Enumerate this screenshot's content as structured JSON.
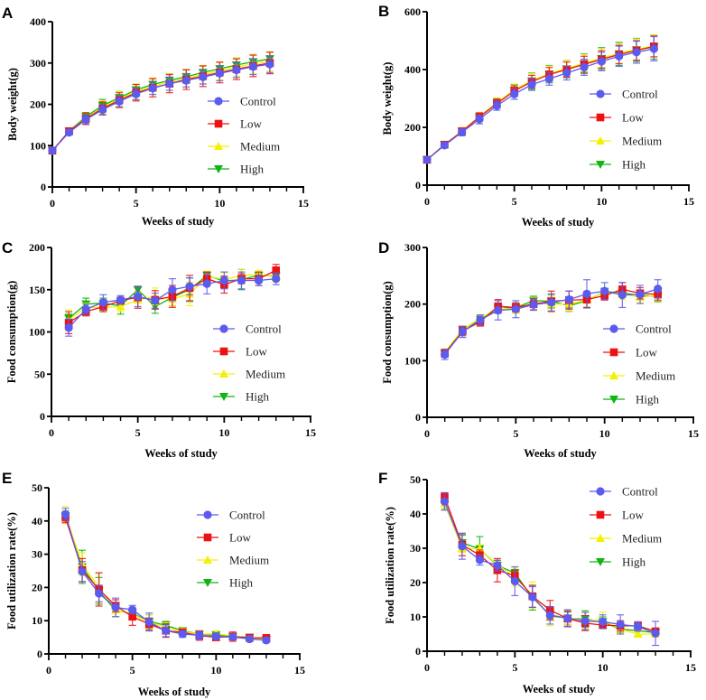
{
  "figure": {
    "legend_labels": [
      "Control",
      "Low",
      "Medium",
      "High"
    ]
  },
  "series_style": {
    "Control": {
      "color": "#5b5bf0",
      "marker": "circle"
    },
    "Low": {
      "color": "#ee1111",
      "marker": "square"
    },
    "Medium": {
      "color": "#f5f000",
      "marker": "triangle-up"
    },
    "High": {
      "color": "#11b511",
      "marker": "triangle-down"
    }
  },
  "chart_data": [
    {
      "panel": "A",
      "type": "line",
      "title": "",
      "xlabel": "Weeks of study",
      "ylabel": "Body weight(g)",
      "xlim": [
        0,
        15
      ],
      "ylim": [
        0,
        400
      ],
      "xticks": [
        0,
        5,
        10,
        15
      ],
      "yticks": [
        0,
        100,
        200,
        300,
        400
      ],
      "grid": false,
      "legend": "right-middle",
      "x": [
        0,
        1,
        2,
        3,
        4,
        5,
        6,
        7,
        8,
        9,
        10,
        11,
        12,
        13
      ],
      "series": [
        {
          "name": "Control",
          "values": [
            88,
            132,
            163,
            187,
            207,
            225,
            239,
            250,
            258,
            266,
            275,
            283,
            291,
            297
          ],
          "error": [
            4,
            6,
            10,
            12,
            13,
            14,
            15,
            16,
            16,
            17,
            18,
            18,
            19,
            20
          ]
        },
        {
          "name": "Low",
          "values": [
            88,
            135,
            165,
            190,
            210,
            228,
            240,
            250,
            260,
            268,
            277,
            285,
            293,
            300
          ],
          "error": [
            4,
            7,
            14,
            16,
            18,
            20,
            22,
            22,
            24,
            25,
            25,
            25,
            26,
            26
          ]
        },
        {
          "name": "Medium",
          "values": [
            88,
            134,
            167,
            193,
            213,
            231,
            244,
            254,
            263,
            272,
            281,
            290,
            298,
            304
          ],
          "error": [
            4,
            6,
            12,
            16,
            18,
            18,
            20,
            20,
            21,
            22,
            22,
            22,
            23,
            23
          ]
        },
        {
          "name": "High",
          "values": [
            88,
            135,
            170,
            197,
            216,
            235,
            248,
            258,
            267,
            277,
            286,
            295,
            303,
            310
          ],
          "error": [
            4,
            5,
            10,
            15,
            15,
            14,
            15,
            16,
            16,
            16,
            16,
            17,
            17,
            17
          ]
        }
      ]
    },
    {
      "panel": "B",
      "type": "line",
      "title": "",
      "xlabel": "Weeks of study",
      "ylabel": "Body weight(g)",
      "xlim": [
        0,
        15
      ],
      "ylim": [
        0,
        600
      ],
      "xticks": [
        0,
        5,
        10,
        15
      ],
      "yticks": [
        0,
        200,
        400,
        600
      ],
      "grid": false,
      "legend": "right-middle",
      "x": [
        0,
        1,
        2,
        3,
        4,
        5,
        6,
        7,
        8,
        9,
        10,
        11,
        12,
        13
      ],
      "series": [
        {
          "name": "Control",
          "values": [
            88,
            138,
            183,
            228,
            275,
            315,
            348,
            368,
            388,
            408,
            428,
            446,
            460,
            472
          ],
          "error": [
            5,
            8,
            12,
            16,
            16,
            18,
            20,
            22,
            24,
            28,
            32,
            35,
            38,
            42
          ]
        },
        {
          "name": "Low",
          "values": [
            88,
            140,
            186,
            236,
            282,
            326,
            358,
            383,
            400,
            418,
            435,
            452,
            466,
            480
          ],
          "error": [
            5,
            8,
            12,
            14,
            16,
            18,
            22,
            24,
            26,
            28,
            30,
            32,
            34,
            36
          ]
        },
        {
          "name": "Medium",
          "values": [
            88,
            140,
            187,
            238,
            286,
            330,
            362,
            386,
            404,
            422,
            440,
            456,
            470,
            482
          ],
          "error": [
            5,
            8,
            12,
            14,
            16,
            20,
            24,
            26,
            28,
            30,
            32,
            34,
            36,
            38
          ]
        },
        {
          "name": "High",
          "values": [
            88,
            140,
            186,
            236,
            284,
            328,
            360,
            384,
            402,
            420,
            438,
            454,
            468,
            478
          ],
          "error": [
            5,
            8,
            12,
            14,
            16,
            20,
            28,
            30,
            30,
            34,
            38,
            40,
            40,
            42
          ]
        }
      ]
    },
    {
      "panel": "C",
      "type": "line",
      "title": "",
      "xlabel": "Weeks of study",
      "ylabel": "Food consumption(g)",
      "xlim": [
        0,
        15
      ],
      "ylim": [
        0,
        200
      ],
      "xticks": [
        0,
        5,
        10,
        15
      ],
      "yticks": [
        0,
        50,
        100,
        150,
        200
      ],
      "grid": false,
      "legend": "right-middle",
      "x": [
        1,
        2,
        3,
        4,
        5,
        6,
        7,
        8,
        9,
        10,
        11,
        12,
        13
      ],
      "series": [
        {
          "name": "Control",
          "values": [
            105,
            127,
            135,
            138,
            142,
            137,
            150,
            154,
            157,
            161,
            161,
            161,
            163
          ],
          "error": [
            10,
            6,
            9,
            5,
            12,
            9,
            13,
            10,
            12,
            10,
            10,
            6,
            7
          ]
        },
        {
          "name": "Low",
          "values": [
            111,
            124,
            130,
            137,
            141,
            138,
            142,
            152,
            163,
            156,
            163,
            163,
            173
          ],
          "error": [
            13,
            5,
            6,
            4,
            13,
            11,
            13,
            15,
            8,
            10,
            6,
            8,
            7
          ]
        },
        {
          "name": "Medium",
          "values": [
            114,
            129,
            129,
            130,
            138,
            142,
            139,
            145,
            166,
            162,
            167,
            168,
            165
          ],
          "error": [
            12,
            5,
            5,
            6,
            8,
            10,
            8,
            14,
            6,
            8,
            7,
            5,
            6
          ]
        },
        {
          "name": "High",
          "values": [
            116,
            133,
            134,
            131,
            150,
            130,
            141,
            150,
            167,
            160,
            162,
            167,
            166
          ],
          "error": [
            5,
            7,
            6,
            10,
            4,
            8,
            10,
            14,
            4,
            6,
            12,
            4,
            5
          ]
        }
      ]
    },
    {
      "panel": "D",
      "type": "line",
      "title": "",
      "xlabel": "Weeks of study",
      "ylabel": "Food consumption(g)",
      "xlim": [
        0,
        15
      ],
      "ylim": [
        0,
        300
      ],
      "xticks": [
        0,
        5,
        10,
        15
      ],
      "yticks": [
        0,
        100,
        200,
        300
      ],
      "grid": false,
      "legend": "right-middle",
      "x": [
        1,
        2,
        3,
        4,
        5,
        6,
        7,
        8,
        9,
        10,
        11,
        12,
        13
      ],
      "series": [
        {
          "name": "Control",
          "values": [
            111,
            151,
            172,
            189,
            191,
            199,
            203,
            208,
            218,
            223,
            216,
            217,
            227
          ],
          "error": [
            9,
            10,
            9,
            17,
            15,
            10,
            15,
            15,
            25,
            15,
            22,
            16,
            16
          ]
        },
        {
          "name": "Low",
          "values": [
            113,
            152,
            169,
            196,
            194,
            200,
            205,
            207,
            208,
            215,
            226,
            219,
            217
          ],
          "error": [
            7,
            8,
            8,
            12,
            8,
            10,
            18,
            16,
            14,
            8,
            12,
            10,
            10
          ]
        },
        {
          "name": "Medium",
          "values": [
            115,
            155,
            175,
            193,
            191,
            203,
            200,
            200,
            207,
            221,
            218,
            212,
            216
          ],
          "error": [
            6,
            6,
            6,
            8,
            8,
            8,
            14,
            12,
            12,
            6,
            10,
            10,
            10
          ]
        },
        {
          "name": "High",
          "values": [
            113,
            155,
            173,
            192,
            194,
            206,
            205,
            197,
            206,
            222,
            220,
            215,
            214
          ],
          "error": [
            6,
            6,
            6,
            8,
            8,
            8,
            12,
            10,
            12,
            6,
            8,
            8,
            10
          ]
        }
      ]
    },
    {
      "panel": "E",
      "type": "line",
      "title": "",
      "xlabel": "Weeks of study",
      "ylabel": "Food utilization rate(%)",
      "xlim": [
        0,
        15
      ],
      "ylim": [
        0,
        50
      ],
      "xticks": [
        0,
        5,
        10,
        15
      ],
      "yticks": [
        0,
        10,
        20,
        30,
        40,
        50
      ],
      "grid": false,
      "legend": "top-right",
      "x": [
        1,
        2,
        3,
        4,
        5,
        6,
        7,
        8,
        9,
        10,
        11,
        12,
        13
      ],
      "series": [
        {
          "name": "Control",
          "values": [
            42.0,
            24.8,
            18.2,
            14.0,
            13.3,
            9.6,
            7.0,
            6.0,
            5.6,
            5.3,
            5.1,
            4.5,
            4.1
          ],
          "error": [
            1.8,
            3.0,
            2.5,
            2.8,
            1.3,
            2.7,
            1.8,
            1.0,
            1.2,
            0.8,
            0.8,
            0.6,
            0.6
          ]
        },
        {
          "name": "Low",
          "values": [
            41.0,
            25.2,
            19.4,
            14.5,
            11.2,
            9.0,
            7.0,
            6.5,
            5.5,
            5.0,
            5.2,
            4.9,
            4.8
          ],
          "error": [
            1.5,
            3.5,
            5.0,
            1.8,
            2.6,
            1.8,
            2.0,
            1.0,
            1.4,
            0.9,
            1.4,
            0.8,
            0.7
          ]
        },
        {
          "name": "Medium",
          "values": [
            41.8,
            27.0,
            20.0,
            13.2,
            12.0,
            9.6,
            8.0,
            6.8,
            6.0,
            6.0,
            5.5,
            4.6,
            4.4
          ],
          "error": [
            2.6,
            3.5,
            4.5,
            2.0,
            1.6,
            2.2,
            1.4,
            1.0,
            1.0,
            0.9,
            0.8,
            0.8,
            0.6
          ]
        },
        {
          "name": "High",
          "values": [
            41.5,
            26.2,
            19.0,
            13.0,
            12.2,
            9.8,
            8.6,
            7.0,
            6.0,
            5.7,
            5.3,
            5.0,
            4.2
          ],
          "error": [
            1.5,
            5.0,
            4.0,
            1.8,
            1.5,
            2.0,
            1.2,
            0.8,
            1.0,
            0.8,
            0.6,
            0.6,
            0.6
          ]
        }
      ]
    },
    {
      "panel": "F",
      "type": "line",
      "title": "",
      "xlabel": "Weeks of study",
      "ylabel": "Food utilization rate(%)",
      "xlim": [
        0,
        15
      ],
      "ylim": [
        0,
        50
      ],
      "xticks": [
        0,
        5,
        10,
        15
      ],
      "yticks": [
        0,
        10,
        20,
        30,
        40,
        50
      ],
      "grid": false,
      "legend": "top-right",
      "x": [
        1,
        2,
        3,
        4,
        5,
        6,
        7,
        8,
        9,
        10,
        11,
        12,
        13
      ],
      "series": [
        {
          "name": "Control",
          "values": [
            43.6,
            30.6,
            26.6,
            25.0,
            20.4,
            15.8,
            10.4,
            9.6,
            8.8,
            8.6,
            7.8,
            7.2,
            5.2
          ],
          "error": [
            2.5,
            3.8,
            1.5,
            1.5,
            4.2,
            3.0,
            2.5,
            2.5,
            2.5,
            2.0,
            2.8,
            1.4,
            3.5
          ]
        },
        {
          "name": "Low",
          "values": [
            45.0,
            31.0,
            28.0,
            23.6,
            22.0,
            16.0,
            12.0,
            9.5,
            8.2,
            7.6,
            7.4,
            7.4,
            5.8
          ],
          "error": [
            1.2,
            3.2,
            1.5,
            3.4,
            1.6,
            3.2,
            2.8,
            2.2,
            2.2,
            1.0,
            1.5,
            1.0,
            0.8
          ]
        },
        {
          "name": "Medium",
          "values": [
            43.0,
            30.0,
            29.8,
            25.2,
            21.6,
            16.4,
            10.0,
            9.8,
            9.0,
            9.0,
            6.4,
            5.0,
            5.0
          ],
          "error": [
            1.5,
            1.2,
            1.2,
            1.0,
            2.6,
            3.8,
            2.6,
            2.0,
            2.4,
            2.4,
            0.8,
            0.9,
            0.8
          ]
        },
        {
          "name": "High",
          "values": [
            42.6,
            31.6,
            29.8,
            25.0,
            22.8,
            15.6,
            10.6,
            9.6,
            9.4,
            8.6,
            6.4,
            6.0,
            5.4
          ],
          "error": [
            1.2,
            2.2,
            3.6,
            1.5,
            1.0,
            3.6,
            1.6,
            1.8,
            2.4,
            1.4,
            1.0,
            1.5,
            1.0
          ]
        }
      ]
    }
  ]
}
